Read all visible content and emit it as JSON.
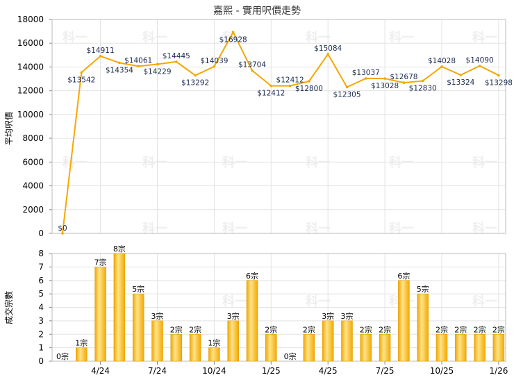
{
  "chart_data": [
    {
      "type": "line",
      "title": "嘉熙 - 實用呎價走勢",
      "ylabel": "平均呎價",
      "ylim": [
        0,
        18000
      ],
      "yticks": [
        0,
        2000,
        4000,
        6000,
        8000,
        10000,
        12000,
        14000,
        16000,
        18000
      ],
      "grid": true,
      "color": "#f5a700",
      "series": [
        {
          "values": [
            0,
            13542,
            14911,
            14354,
            14061,
            14229,
            14445,
            13292,
            14039,
            16928,
            13704,
            12412,
            12412,
            12800,
            15084,
            12305,
            13037,
            13028,
            12678,
            12830,
            14028,
            13324,
            14090,
            13298
          ]
        }
      ],
      "data_labels": [
        "$0",
        "$13542",
        "$14911",
        "$14354",
        "$14061",
        "$14229",
        "$14445",
        "$13292",
        "$14039",
        "$16928",
        "$13704",
        "$12412",
        "$12412",
        "$12800",
        "$15084",
        "$12305",
        "$13037",
        "$13028",
        "$12678",
        "$12830",
        "$14028",
        "$13324",
        "$14090",
        "$13298"
      ]
    },
    {
      "type": "bar",
      "ylabel": "成交宗數",
      "ylim": [
        0,
        8
      ],
      "yticks": [
        0,
        1,
        2,
        3,
        4,
        5,
        6,
        7,
        8
      ],
      "grid": true,
      "color": "#f5a700",
      "values": [
        0,
        1,
        7,
        8,
        5,
        3,
        2,
        2,
        1,
        3,
        6,
        2,
        0,
        2,
        3,
        3,
        2,
        2,
        6,
        5,
        2,
        2,
        2,
        2
      ],
      "data_labels": [
        "0宗",
        "1宗",
        "7宗",
        "8宗",
        "5宗",
        "3宗",
        "2宗",
        "2宗",
        "1宗",
        "3宗",
        "6宗",
        "2宗",
        "0宗",
        "2宗",
        "3宗",
        "3宗",
        "2宗",
        "2宗",
        "6宗",
        "5宗",
        "2宗",
        "2宗",
        "2宗",
        "2宗"
      ],
      "x_tick_labels": [
        {
          "index": 2,
          "label": "4/24"
        },
        {
          "index": 5,
          "label": "7/24"
        },
        {
          "index": 8,
          "label": "10/24"
        },
        {
          "index": 11,
          "label": "1/25"
        },
        {
          "index": 14,
          "label": "4/25"
        },
        {
          "index": 17,
          "label": "7/25"
        },
        {
          "index": 20,
          "label": "10/25"
        },
        {
          "index": 23,
          "label": "1/26"
        }
      ]
    }
  ],
  "watermark": "科一"
}
